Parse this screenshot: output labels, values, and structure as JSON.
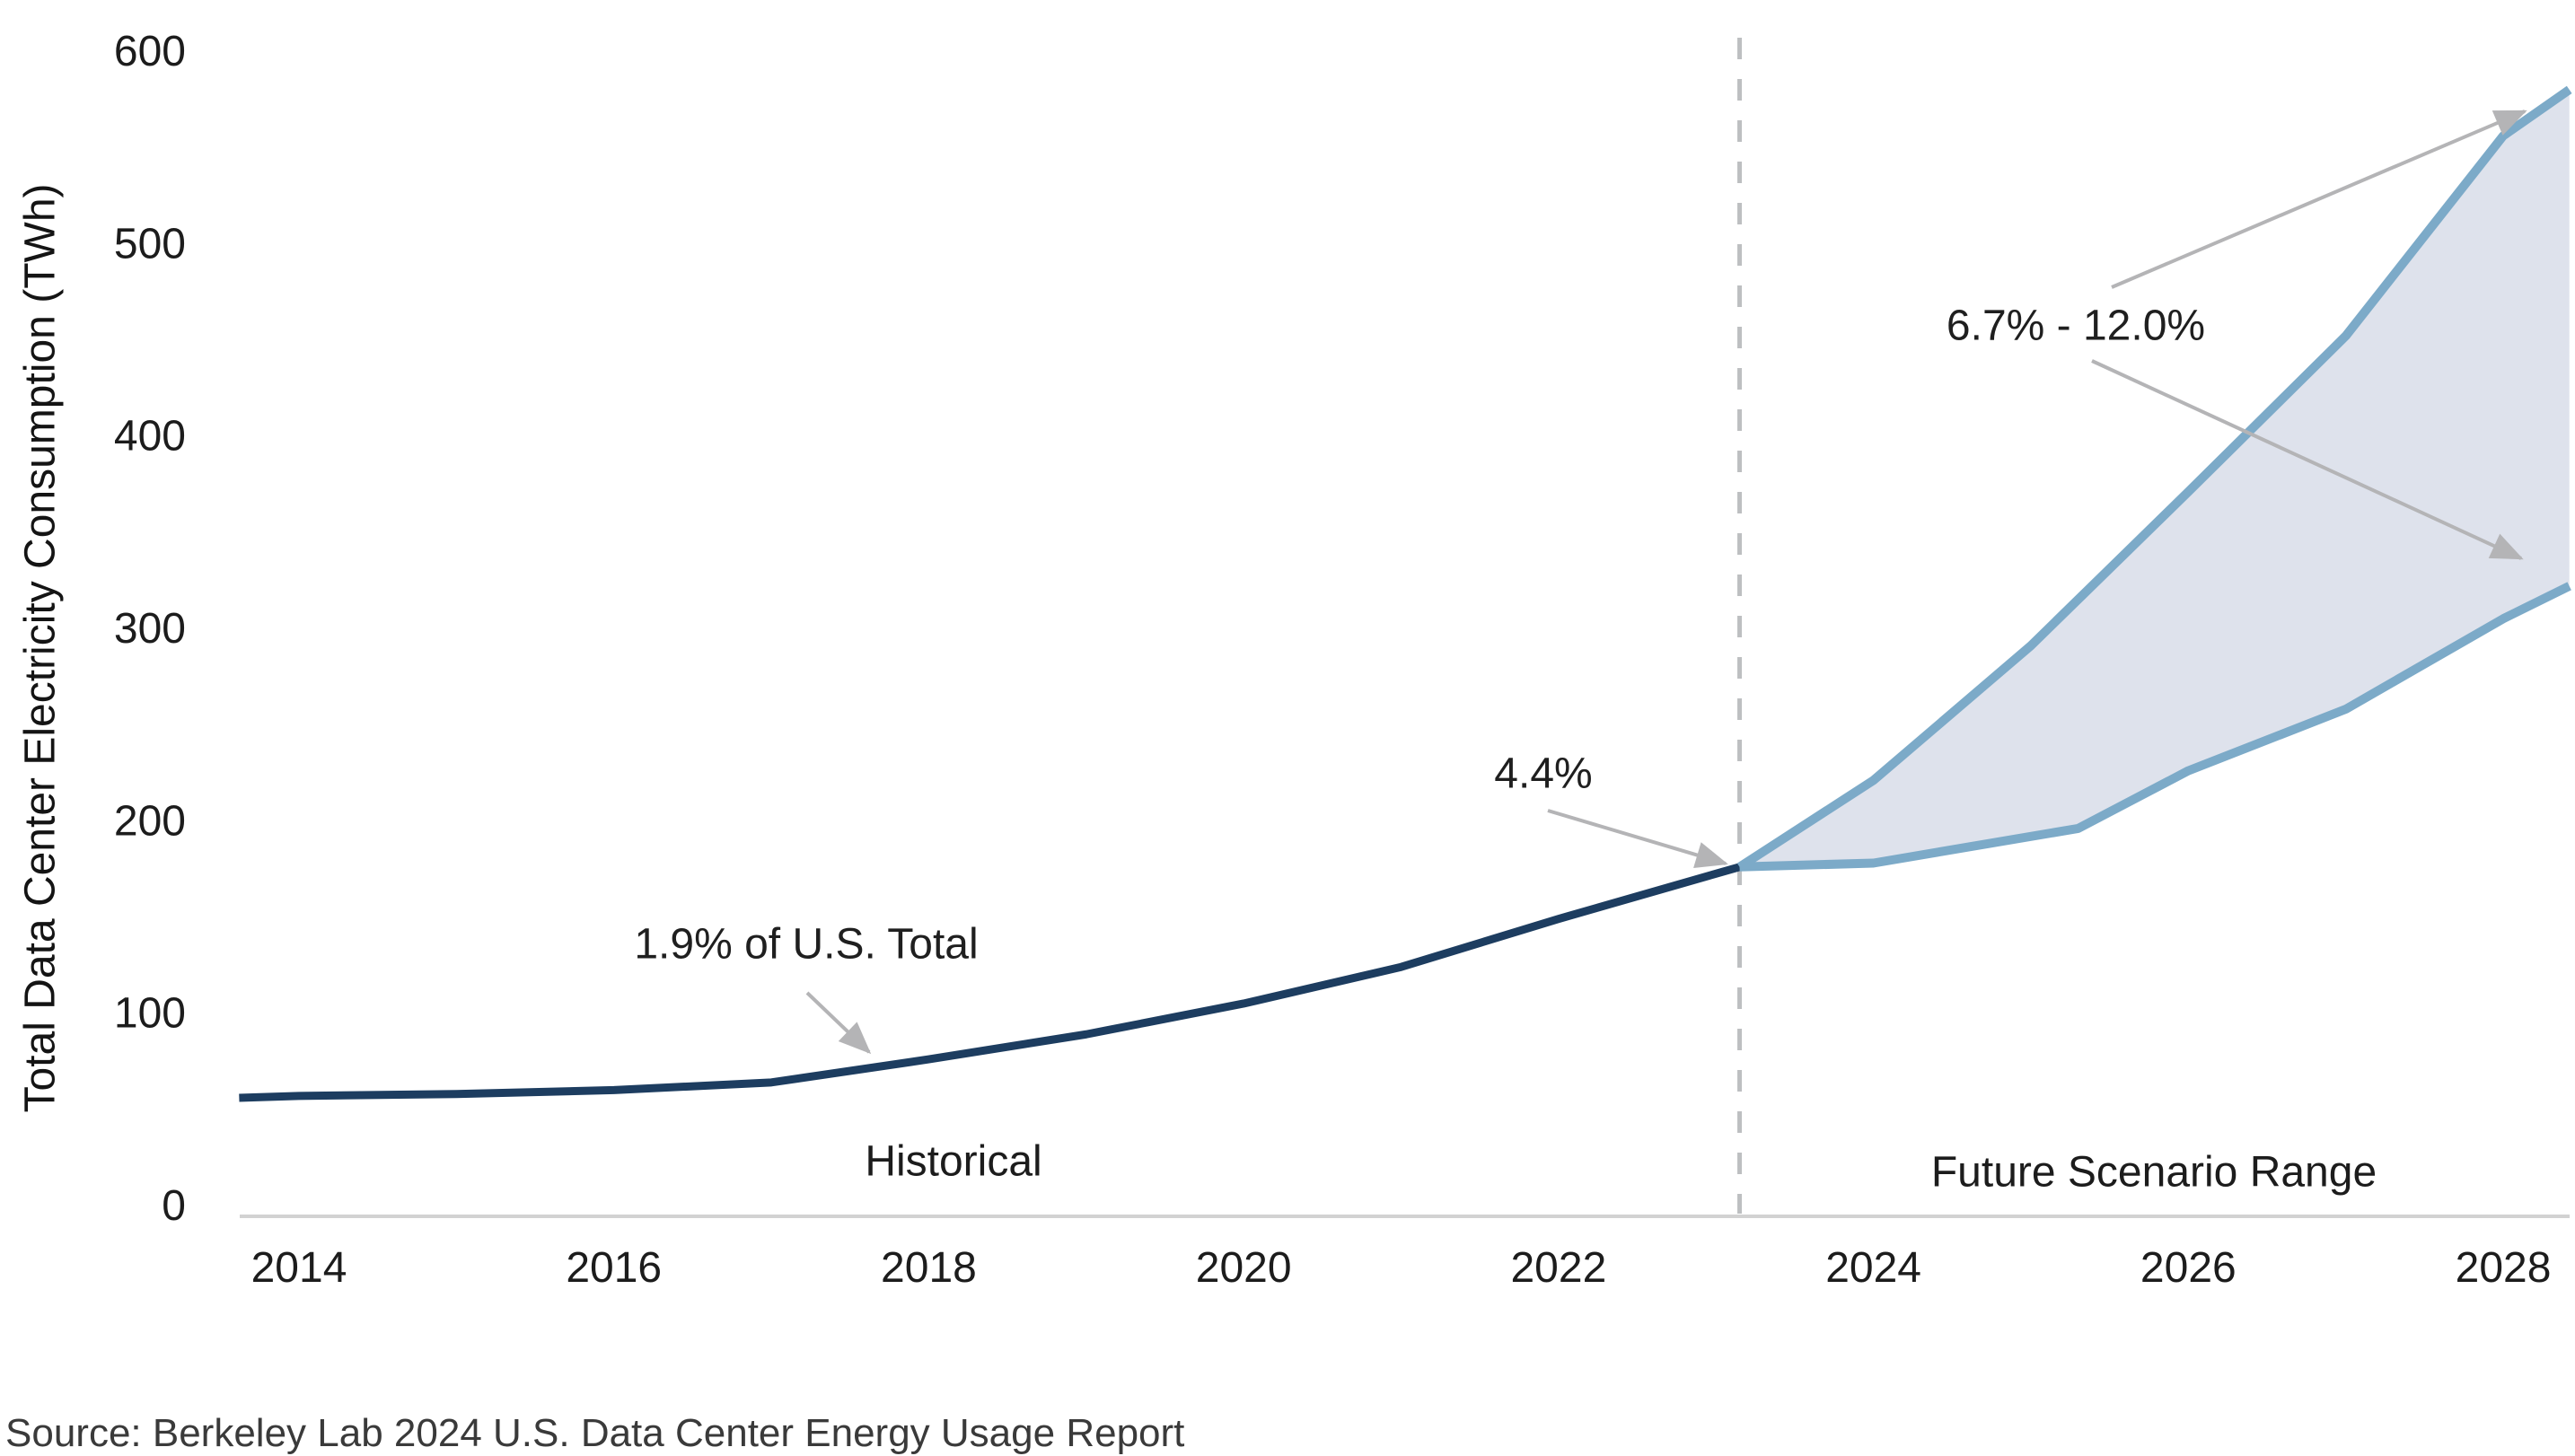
{
  "chart_data": {
    "type": "line",
    "title": "",
    "xlabel": "",
    "ylabel": "Total Data Center Electricity Consumption (TWh)",
    "x_ticks": [
      "2014",
      "2016",
      "2018",
      "2020",
      "2022",
      "2024",
      "2026",
      "2028"
    ],
    "y_ticks": [
      "0",
      "100",
      "200",
      "300",
      "400",
      "500",
      "600"
    ],
    "ylim": [
      0,
      600
    ],
    "xlim": [
      2013.6,
      2028.45
    ],
    "grid": false,
    "legend": "none",
    "divider_year": 2023.15,
    "series": [
      {
        "name": "Historical",
        "color": "#1d3d60",
        "width": 9,
        "x": [
          2013.62,
          2014,
          2015,
          2016,
          2017,
          2018,
          2019,
          2020,
          2021,
          2022,
          2023.15
        ],
        "values": [
          56,
          57,
          58,
          60,
          64,
          76,
          89,
          105,
          124,
          149,
          176
        ]
      },
      {
        "name": "Future high scenario",
        "color": "#7caac8",
        "width": 10,
        "x": [
          2023.15,
          2024,
          2025,
          2026,
          2027,
          2028,
          2028.42
        ],
        "values": [
          176,
          221,
          291,
          371,
          452,
          556,
          580
        ]
      },
      {
        "name": "Future low scenario",
        "color": "#7caac8",
        "width": 10,
        "x": [
          2023.15,
          2024,
          2025.3,
          2026,
          2027,
          2028,
          2028.42
        ],
        "values": [
          176,
          178,
          196,
          226,
          258,
          305,
          322
        ]
      }
    ],
    "band": {
      "between": [
        "Future high scenario",
        "Future low scenario"
      ],
      "fill": "#dee2ec",
      "range_2028": [
        325,
        580
      ]
    },
    "annotations": [
      {
        "text": "1.9% of U.S. Total",
        "points_to_year": 2018,
        "points_to_value": 76
      },
      {
        "text": "4.4%",
        "points_to_year": 2023,
        "points_to_value": 176
      },
      {
        "text": "6.7% - 12.0%",
        "points_to_year": 2028,
        "points_to_value": "325-580"
      }
    ],
    "region_labels": [
      "Historical",
      "Future Scenario Range"
    ]
  },
  "source": {
    "text": "Source: Berkeley Lab 2024 U.S. Data Center Energy Usage Report"
  },
  "colors": {
    "historical_line": "#1d3d60",
    "future_line": "#7caac8",
    "band_fill": "#dee2ec",
    "divider": "#bdbfc1",
    "arrow": "#b4b4b6",
    "axis_line": "#d2d2d2",
    "text": "#1f1f1f",
    "source_text": "#3a3a3a"
  }
}
